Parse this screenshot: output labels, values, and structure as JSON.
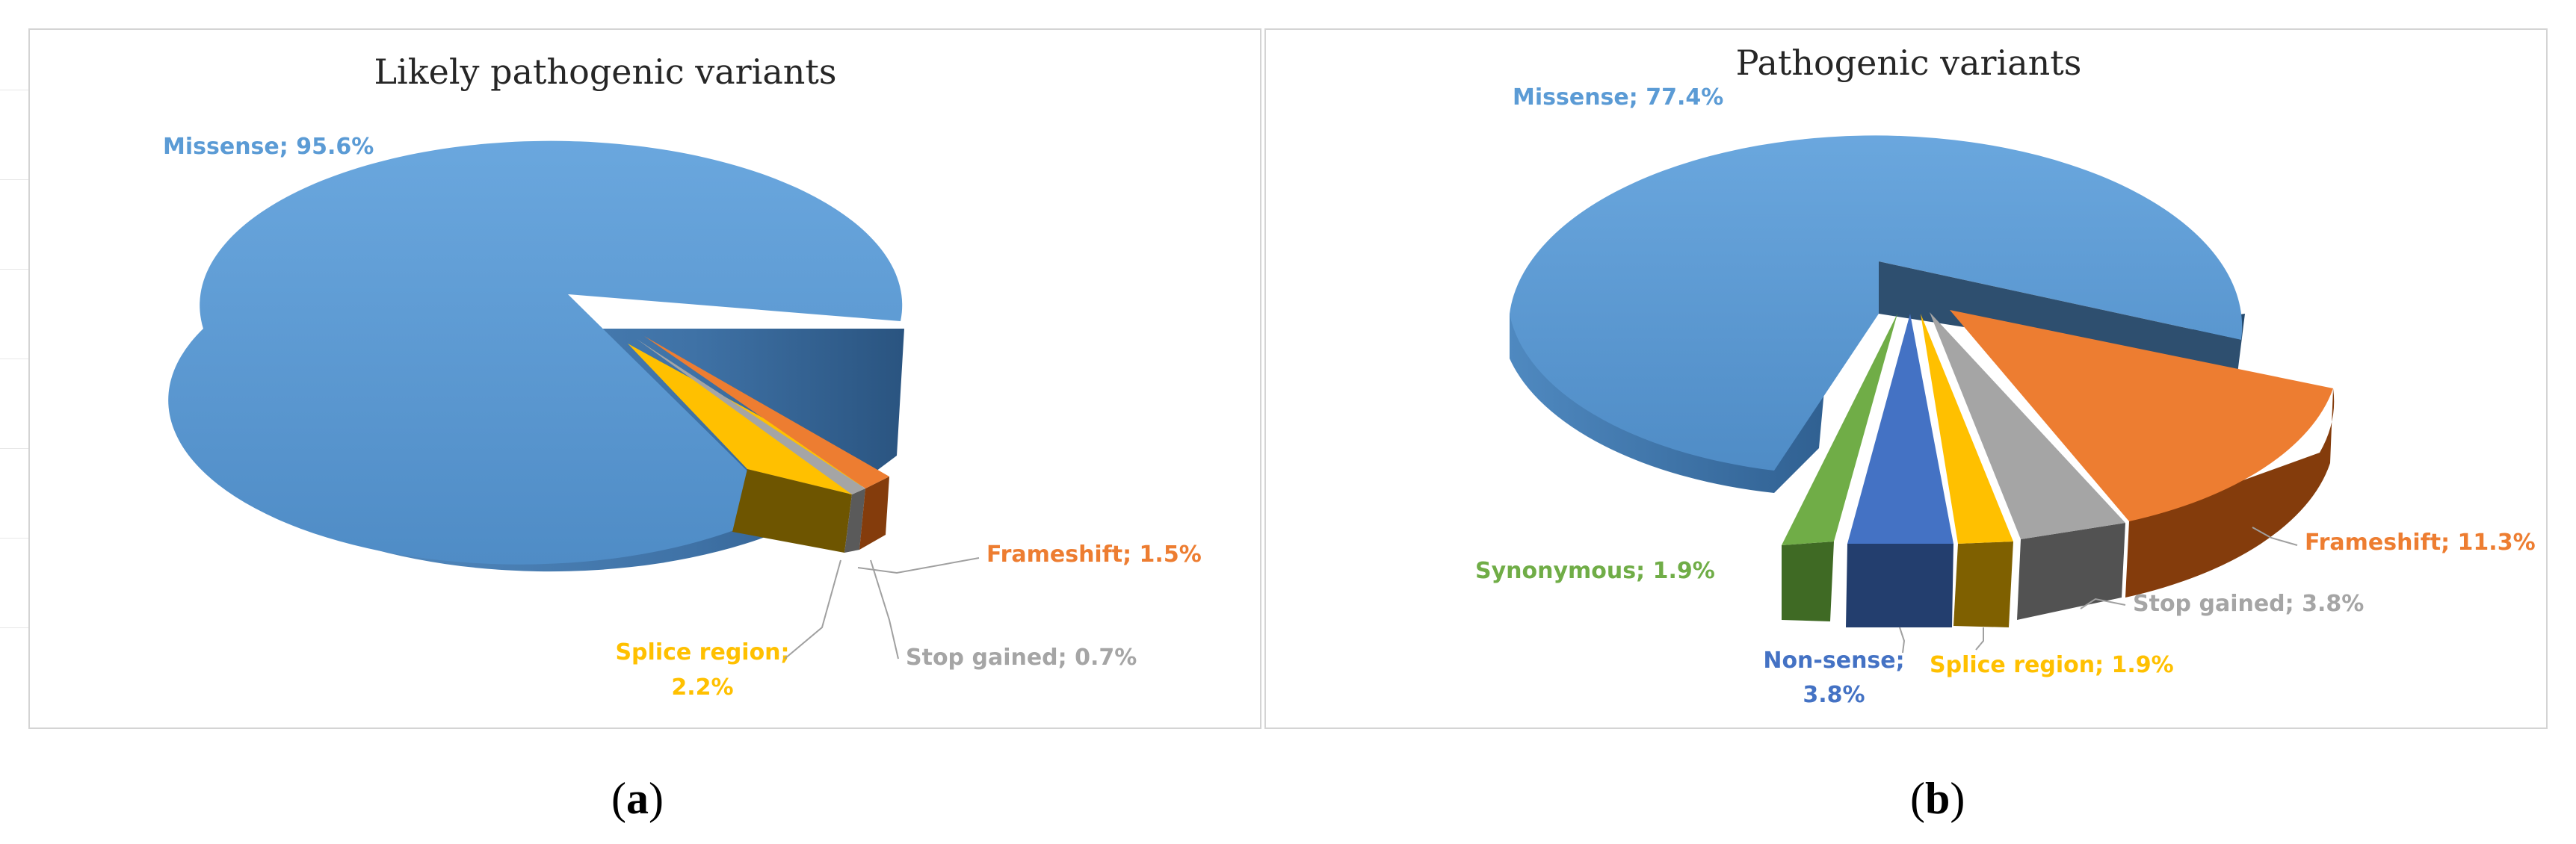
{
  "chart_data": [
    {
      "type": "pie",
      "title": "Likely pathogenic variants",
      "panel_label": "a",
      "slices": [
        {
          "name": "Missense",
          "value": 95.6,
          "label": "Missense; 95.6%",
          "color": "#5b9bd5"
        },
        {
          "name": "Splice region",
          "value": 2.2,
          "label_line1": "Splice region;",
          "label_line2": "2.2%",
          "color": "#ffc000"
        },
        {
          "name": "Stop gained",
          "value": 0.7,
          "label": "Stop gained; 0.7%",
          "color": "#a5a5a5"
        },
        {
          "name": "Frameshift",
          "value": 1.5,
          "label": "Frameshift; 1.5%",
          "color": "#ed7d31"
        }
      ]
    },
    {
      "type": "pie",
      "title": "Pathogenic variants",
      "panel_label": "b",
      "slices": [
        {
          "name": "Missense",
          "value": 77.4,
          "label": "Missense; 77.4%",
          "color": "#5b9bd5"
        },
        {
          "name": "Synonymous",
          "value": 1.9,
          "label": "Synonymous; 1.9%",
          "color": "#70ad47"
        },
        {
          "name": "Non-sense",
          "value": 3.8,
          "label_line1": "Non-sense;",
          "label_line2": "3.8%",
          "color": "#4472c4"
        },
        {
          "name": "Splice region",
          "value": 1.9,
          "label": "Splice region; 1.9%",
          "color": "#ffc000"
        },
        {
          "name": "Stop gained",
          "value": 3.8,
          "label": "Stop gained; 3.8%",
          "color": "#a5a5a5"
        },
        {
          "name": "Frameshift",
          "value": 11.3,
          "label": "Frameshift; 11.3%",
          "color": "#ed7d31"
        }
      ]
    }
  ]
}
